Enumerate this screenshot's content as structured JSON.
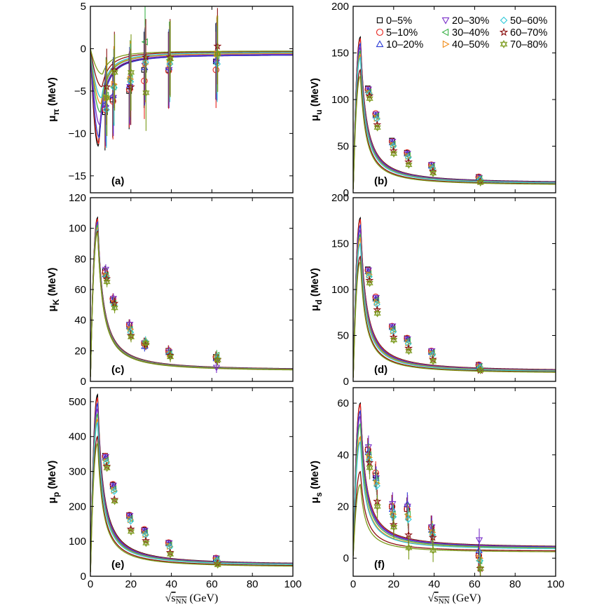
{
  "chart_data": {
    "type": "line",
    "x_axis": {
      "label_prefix": "√",
      "label_variable": "s",
      "label_subscript": "NN",
      "label_units": "(GeV)",
      "xlim": [
        0,
        100
      ],
      "ticks": [
        "0",
        "20",
        "40",
        "60",
        "80",
        "100"
      ]
    },
    "legend": {
      "placement": "top-right of panel (b)",
      "entries": [
        {
          "label": "0–5%",
          "marker": "square",
          "color": "#000000"
        },
        {
          "label": "5–10%",
          "marker": "circle",
          "color": "#e8251f"
        },
        {
          "label": "10–20%",
          "marker": "triangle-up",
          "color": "#2b3bd6"
        },
        {
          "label": "20–30%",
          "marker": "triangle-down",
          "color": "#7a2fc9"
        },
        {
          "label": "30–40%",
          "marker": "triangle-left",
          "color": "#3db24a"
        },
        {
          "label": "40–50%",
          "marker": "triangle-right",
          "color": "#f08c1a"
        },
        {
          "label": "50–60%",
          "marker": "diamond",
          "color": "#2ec8d8"
        },
        {
          "label": "60–70%",
          "marker": "star",
          "color": "#8b1010"
        },
        {
          "label": "70–80%",
          "marker": "hexagram",
          "color": "#7a9a1a"
        }
      ]
    },
    "panels": [
      {
        "tag": "(a)",
        "y_label_main": "μ",
        "y_label_sub": "π",
        "y_label_units": "(MeV)",
        "ylim": [
          -17,
          5
        ],
        "yticks": [
          5,
          0,
          -5,
          -10,
          -15
        ],
        "ytick_labels": [
          "5",
          "0",
          "−5",
          "−10",
          "−15"
        ],
        "curve_depth": [
          -11.5,
          -11.2,
          -10.5,
          -9,
          -7.5,
          -6.5,
          -5.8,
          -4.5,
          -3
        ],
        "curve_tail": [
          -0.7,
          -0.7,
          -0.7,
          -0.6,
          -0.5,
          -0.5,
          -0.4,
          -0.3,
          -0.25
        ],
        "data_x": [
          7.7,
          11.5,
          19.6,
          27,
          39,
          62.4
        ],
        "data": [
          [
            -7.5,
            -6,
            -5,
            -2.5,
            -2.5,
            -1.5
          ],
          [
            -7.2,
            -6.2,
            -4.8,
            -3.8,
            -2.6,
            -2.5
          ],
          [
            -6.5,
            -5.5,
            -4.3,
            -2.2,
            -2.2,
            -1.4
          ],
          [
            -7,
            -5.8,
            -4.5,
            -2.0,
            -2.5,
            -1.6
          ],
          [
            -5.5,
            -4.5,
            -3.5,
            0.8,
            -1.3,
            -0.8
          ],
          [
            -5.8,
            -4.2,
            -3.6,
            -1.8,
            -1.8,
            -0.6
          ],
          [
            -7.2,
            -4.6,
            -3.9,
            -1.6,
            -1.8,
            -1.8
          ],
          [
            -4.5,
            -2.5,
            -4.5,
            -1.0,
            -1.0,
            0.3
          ],
          [
            -5.8,
            -2.8,
            -2.8,
            -5.2,
            -1.2,
            -0.6
          ]
        ],
        "err_up": 4.5,
        "err_down": 4.5
      },
      {
        "tag": "(b)",
        "y_label_main": "μ",
        "y_label_sub": "u",
        "y_label_units": "(MeV)",
        "ylim": [
          0,
          200
        ],
        "yticks": [
          0,
          50,
          100,
          150,
          200
        ],
        "ytick_labels": [
          "0",
          "50",
          "100",
          "150",
          "200"
        ],
        "curve_peak": [
          167,
          165,
          160,
          156,
          152,
          148,
          145,
          132,
          125
        ],
        "curve_tail": [
          10.2,
          10.0,
          9.9,
          9.7,
          9.4,
          9.2,
          9.0,
          8.2,
          7.8
        ],
        "data_x": [
          7.7,
          11.5,
          19.6,
          27,
          39,
          62.4
        ],
        "data": [
          [
            112,
            84,
            56,
            43,
            30,
            17
          ],
          [
            111,
            85,
            55,
            43,
            30,
            17
          ],
          [
            110,
            83,
            54,
            42,
            29,
            16
          ],
          [
            111,
            84,
            55,
            42,
            30,
            16
          ],
          [
            108,
            82,
            52,
            40,
            28,
            15
          ],
          [
            107,
            80,
            51,
            39,
            27,
            15
          ],
          [
            106,
            79,
            50,
            38,
            26,
            14
          ],
          [
            104,
            73,
            45,
            33,
            23,
            12
          ],
          [
            101,
            70,
            42,
            30,
            21,
            11
          ]
        ],
        "err_up": 2,
        "err_down": 2
      },
      {
        "tag": "(c)",
        "y_label_main": "μ",
        "y_label_sub": "K",
        "y_label_units": "(MeV)",
        "ylim": [
          0,
          120
        ],
        "yticks": [
          0,
          20,
          40,
          60,
          80,
          100,
          120
        ],
        "ytick_labels": [
          "0",
          "20",
          "40",
          "60",
          "80",
          "100",
          "120"
        ],
        "curve_peak": [
          107,
          106,
          104,
          103,
          102,
          100,
          99,
          98,
          97
        ],
        "curve_tail": [
          7.2,
          7.1,
          7.0,
          6.9,
          6.9,
          6.8,
          6.7,
          6.6,
          6.5
        ],
        "data_x": [
          7.7,
          11.5,
          19.6,
          27,
          39,
          62.4
        ],
        "data": [
          [
            72,
            53,
            37,
            25,
            20,
            16
          ],
          [
            71,
            54,
            37,
            25,
            20,
            16
          ],
          [
            70,
            53,
            36,
            23,
            19,
            15
          ],
          [
            73,
            54,
            37,
            25,
            19,
            9
          ],
          [
            69,
            51,
            34,
            25,
            18,
            17
          ],
          [
            69,
            51,
            34,
            25,
            18,
            15
          ],
          [
            68,
            50,
            32,
            26,
            18,
            15
          ],
          [
            67,
            51,
            30,
            24,
            17,
            14
          ],
          [
            65,
            48,
            29,
            25,
            16,
            14
          ]
        ],
        "err_up": 3.5,
        "err_down": 3.5
      },
      {
        "tag": "(d)",
        "y_label_main": "μ",
        "y_label_sub": "d",
        "y_label_units": "(MeV)",
        "ylim": [
          0,
          200
        ],
        "yticks": [
          0,
          50,
          100,
          150,
          200
        ],
        "ytick_labels": [
          "0",
          "50",
          "100",
          "150",
          "200"
        ],
        "curve_peak": [
          178,
          176,
          170,
          165,
          160,
          156,
          150,
          136,
          130
        ],
        "curve_tail": [
          11,
          10.8,
          10.5,
          10.3,
          10.1,
          9.9,
          9.6,
          8.9,
          8.5
        ],
        "data_x": [
          7.7,
          11.5,
          19.6,
          27,
          39,
          62.4
        ],
        "data": [
          [
            122,
            91,
            60,
            47,
            33,
            18
          ],
          [
            121,
            92,
            60,
            47,
            33,
            18
          ],
          [
            120,
            90,
            59,
            46,
            32,
            17
          ],
          [
            121,
            91,
            60,
            46,
            33,
            17
          ],
          [
            117,
            88,
            57,
            44,
            31,
            16
          ],
          [
            116,
            86,
            55,
            42,
            30,
            16
          ],
          [
            114,
            84,
            54,
            41,
            29,
            15
          ],
          [
            110,
            78,
            48,
            36,
            24,
            12
          ],
          [
            107,
            74,
            45,
            33,
            22,
            12
          ]
        ],
        "err_up": 2,
        "err_down": 2
      },
      {
        "tag": "(e)",
        "y_label_main": "μ",
        "y_label_sub": "p",
        "y_label_units": "(MeV)",
        "ylim": [
          0,
          540
        ],
        "yticks": [
          0,
          100,
          200,
          300,
          400,
          500
        ],
        "ytick_labels": [
          "0",
          "100",
          "200",
          "300",
          "400",
          "500"
        ],
        "curve_peak": [
          520,
          510,
          495,
          480,
          465,
          450,
          440,
          400,
          380
        ],
        "curve_tail": [
          32,
          31.5,
          31,
          30.5,
          30,
          29.5,
          29,
          26.5,
          25
        ],
        "data_x": [
          7.7,
          11.5,
          19.6,
          27,
          39,
          62.4
        ],
        "data": [
          [
            345,
            262,
            175,
            133,
            96,
            52
          ],
          [
            344,
            263,
            175,
            134,
            96,
            52
          ],
          [
            340,
            258,
            172,
            130,
            94,
            50
          ],
          [
            342,
            260,
            173,
            131,
            95,
            51
          ],
          [
            332,
            250,
            165,
            124,
            89,
            48
          ],
          [
            328,
            246,
            162,
            120,
            86,
            46
          ],
          [
            325,
            243,
            158,
            118,
            84,
            45
          ],
          [
            315,
            220,
            135,
            102,
            68,
            36
          ],
          [
            310,
            215,
            128,
            95,
            63,
            33
          ]
        ],
        "err_up": 5,
        "err_down": 5
      },
      {
        "tag": "(f)",
        "y_label_main": "μ",
        "y_label_sub": "s",
        "y_label_units": "(MeV)",
        "ylim": [
          -7,
          66
        ],
        "yticks": [
          0,
          20,
          40,
          60
        ],
        "ytick_labels": [
          "0",
          "20",
          "40",
          "60"
        ],
        "curve_peak": [
          60,
          59.5,
          57,
          55,
          52,
          47,
          45,
          33.5,
          28.5
        ],
        "curve_tail": [
          4.0,
          3.9,
          3.8,
          3.7,
          3.5,
          3.3,
          3.2,
          2.5,
          2.2
        ],
        "data_x": [
          7.7,
          11.5,
          19.6,
          27,
          39,
          62.4
        ],
        "data": [
          [
            42,
            32,
            20,
            19,
            12,
            1
          ],
          [
            42,
            33,
            20,
            19,
            12,
            1
          ],
          [
            41,
            31,
            19,
            21,
            11,
            3
          ],
          [
            43,
            31,
            21,
            20,
            12,
            7
          ],
          [
            40,
            30,
            17,
            17,
            10,
            -1
          ],
          [
            39,
            29,
            17,
            16,
            10,
            0
          ],
          [
            38,
            28,
            16,
            15,
            9,
            -1
          ],
          [
            37,
            22,
            13,
            9,
            8,
            -4
          ],
          [
            35,
            20,
            12,
            4,
            3,
            -4
          ]
        ],
        "err_up": 4.5,
        "err_down": 4.5
      }
    ]
  }
}
